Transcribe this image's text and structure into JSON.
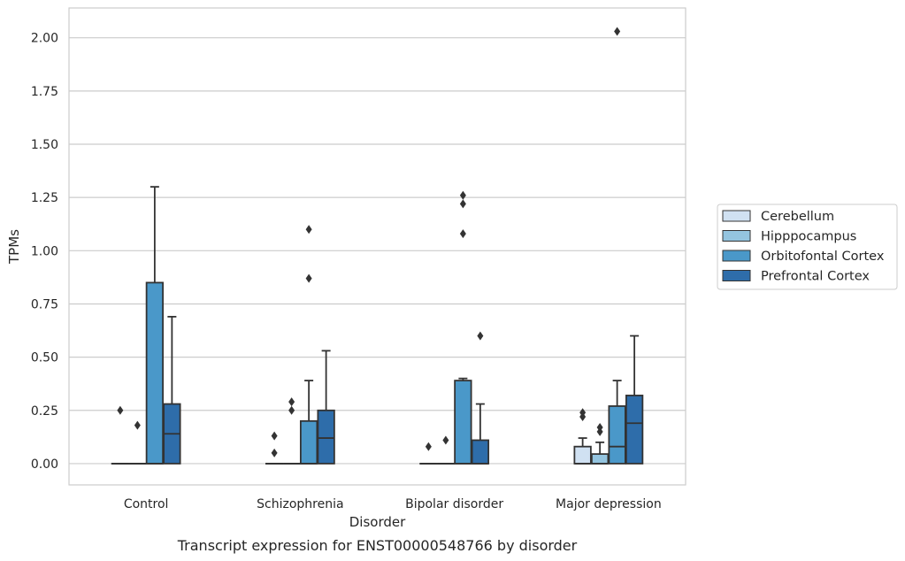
{
  "chart_data": {
    "type": "box",
    "caption": "Transcript expression for ENST00000548766 by disorder",
    "xlabel": "Disorder",
    "ylabel": "TPMs",
    "ylim": [
      -0.1,
      2.14
    ],
    "yticks": [
      "0.00",
      "0.25",
      "0.50",
      "0.75",
      "1.00",
      "1.25",
      "1.50",
      "1.75",
      "2.00"
    ],
    "ytick_values": [
      0,
      0.25,
      0.5,
      0.75,
      1.0,
      1.25,
      1.5,
      1.75,
      2.0
    ],
    "grid": true,
    "legend_position": "right",
    "categories": [
      "Control",
      "Schizophrenia",
      "Bipolar disorder",
      "Major depression"
    ],
    "series": [
      {
        "name": "Cerebellum",
        "color": "#d0e1f2",
        "boxes": [
          {
            "whislo": 0,
            "q1": 0,
            "med": 0,
            "q3": 0,
            "whishi": 0,
            "fliers": [
              0.25
            ]
          },
          {
            "whislo": 0,
            "q1": 0,
            "med": 0,
            "q3": 0,
            "whishi": 0,
            "fliers": [
              0.05,
              0.13
            ]
          },
          {
            "whislo": 0,
            "q1": 0,
            "med": 0,
            "q3": 0,
            "whishi": 0,
            "fliers": [
              0.08
            ]
          },
          {
            "whislo": 0,
            "q1": 0,
            "med": 0,
            "q3": 0.08,
            "whishi": 0.12,
            "fliers": [
              0.22,
              0.24
            ]
          }
        ]
      },
      {
        "name": "Hipppocampus",
        "color": "#94c4df",
        "boxes": [
          {
            "whislo": 0,
            "q1": 0,
            "med": 0,
            "q3": 0,
            "whishi": 0,
            "fliers": [
              0.18
            ]
          },
          {
            "whislo": 0,
            "q1": 0,
            "med": 0,
            "q3": 0,
            "whishi": 0,
            "fliers": [
              0.25,
              0.29
            ]
          },
          {
            "whislo": 0,
            "q1": 0,
            "med": 0,
            "q3": 0,
            "whishi": 0,
            "fliers": [
              0.11
            ]
          },
          {
            "whislo": 0,
            "q1": 0,
            "med": 0,
            "q3": 0.045,
            "whishi": 0.1,
            "fliers": [
              0.15,
              0.17
            ]
          }
        ]
      },
      {
        "name": "Orbitofontal Cortex",
        "color": "#4a98c9",
        "boxes": [
          {
            "whislo": 0,
            "q1": 0,
            "med": 0,
            "q3": 0.85,
            "whishi": 1.3,
            "fliers": []
          },
          {
            "whislo": 0,
            "q1": 0,
            "med": 0,
            "q3": 0.2,
            "whishi": 0.39,
            "fliers": [
              0.87,
              1.1
            ]
          },
          {
            "whislo": 0,
            "q1": 0,
            "med": 0,
            "q3": 0.39,
            "whishi": 0.4,
            "fliers": [
              1.08,
              1.22,
              1.26
            ]
          },
          {
            "whislo": 0,
            "q1": 0,
            "med": 0.08,
            "q3": 0.27,
            "whishi": 0.39,
            "fliers": [
              2.03
            ]
          }
        ]
      },
      {
        "name": "Prefrontal Cortex",
        "color": "#2e6daa",
        "boxes": [
          {
            "whislo": 0,
            "q1": 0,
            "med": 0.14,
            "q3": 0.28,
            "whishi": 0.69,
            "fliers": []
          },
          {
            "whislo": 0,
            "q1": 0,
            "med": 0.12,
            "q3": 0.25,
            "whishi": 0.53,
            "fliers": []
          },
          {
            "whislo": 0,
            "q1": 0,
            "med": 0,
            "q3": 0.11,
            "whishi": 0.28,
            "fliers": [
              0.6
            ]
          },
          {
            "whislo": 0,
            "q1": 0,
            "med": 0.19,
            "q3": 0.32,
            "whishi": 0.6,
            "fliers": []
          }
        ]
      }
    ]
  }
}
